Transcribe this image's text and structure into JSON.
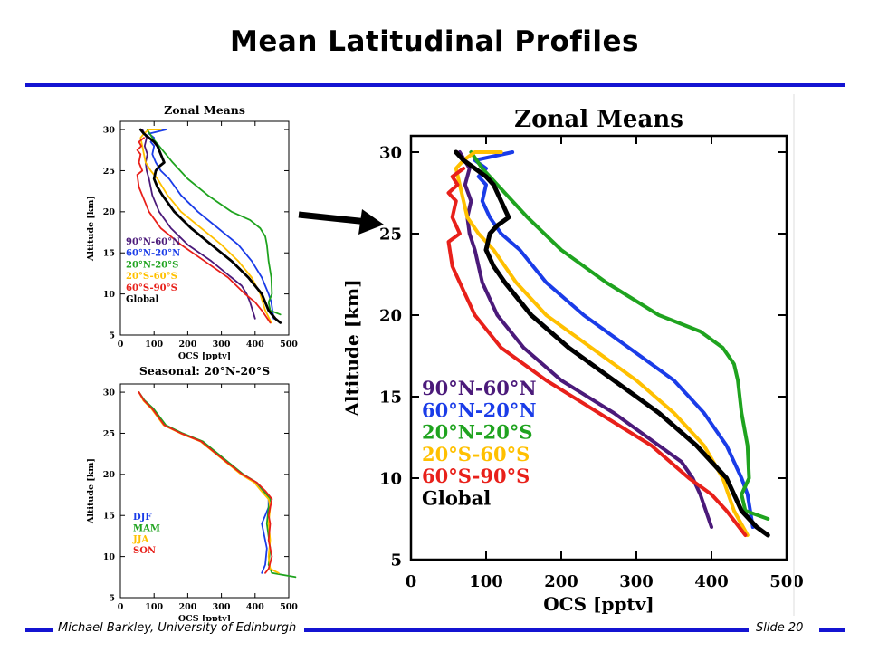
{
  "slide": {
    "title": "Mean Latitudinal Profiles",
    "footer_left": "Michael Barkley, University of Edinburgh",
    "footer_right": "Slide 20"
  },
  "colors": {
    "accent": "#1414d2",
    "purple": "#4b1a7a",
    "blue": "#1a3ce8",
    "green": "#1fa31f",
    "yellow": "#ffc000",
    "red": "#e8201a",
    "black": "#000000"
  },
  "arrow": {
    "icon": "right-arrow-icon"
  },
  "chart_data": [
    {
      "type": "line",
      "title": "Zonal Means",
      "xlabel": "OCS [pptv]",
      "ylabel": "Altitude [km]",
      "xlim": [
        0,
        500
      ],
      "ylim": [
        5,
        31
      ],
      "xticks": [
        0,
        100,
        200,
        300,
        400,
        500
      ],
      "yticks": [
        5,
        10,
        15,
        20,
        25,
        30
      ],
      "grid": false,
      "legend": "inside lower-left",
      "series": [
        {
          "name": "90°N-60°N",
          "color": "#4b1a7a",
          "x": [
            400,
            385,
            375,
            360,
            330,
            270,
            200,
            150,
            115,
            95,
            85,
            78,
            75,
            80,
            72,
            78,
            65
          ],
          "y": [
            7,
            9,
            10,
            11,
            12,
            14,
            16,
            18,
            20,
            22,
            24,
            25,
            26,
            27,
            28,
            29,
            30
          ]
        },
        {
          "name": "60°N-20°N",
          "color": "#1a3ce8",
          "x": [
            455,
            448,
            440,
            420,
            390,
            350,
            290,
            230,
            180,
            145,
            120,
            105,
            95,
            100,
            90,
            100,
            85,
            135
          ],
          "y": [
            7,
            9,
            10,
            12,
            14,
            16,
            18,
            20,
            22,
            24,
            25,
            26,
            27,
            28,
            28.5,
            29,
            29.5,
            30
          ]
        },
        {
          "name": "20°N-20°S",
          "color": "#1fa31f",
          "x": [
            475,
            445,
            440,
            450,
            448,
            440,
            435,
            430,
            415,
            385,
            330,
            260,
            200,
            155,
            115,
            95,
            80
          ],
          "y": [
            7.5,
            8,
            9,
            10,
            12,
            14,
            16,
            17,
            18,
            19,
            20,
            22,
            24,
            26,
            28,
            29,
            30
          ]
        },
        {
          "name": "20°S-60°S",
          "color": "#ffc000",
          "x": [
            448,
            430,
            415,
            390,
            350,
            300,
            240,
            180,
            140,
            110,
            90,
            75,
            70,
            65,
            60,
            70,
            85,
            120
          ],
          "y": [
            6.5,
            8,
            10,
            12,
            14,
            16,
            18,
            20,
            22,
            24,
            25,
            26,
            27,
            28,
            29,
            29.5,
            30,
            30
          ]
        },
        {
          "name": "60°S-90°S",
          "color": "#e8201a",
          "x": [
            445,
            420,
            400,
            370,
            320,
            250,
            180,
            120,
            85,
            65,
            55,
            50,
            65,
            55,
            60,
            50,
            62,
            55,
            70
          ],
          "y": [
            6.5,
            8,
            9,
            10,
            12,
            14,
            16,
            18,
            20,
            22,
            23,
            24.5,
            25,
            26,
            27,
            27.5,
            28,
            28.5,
            29
          ]
        },
        {
          "name": "Global",
          "color": "#000000",
          "x": [
            475,
            460,
            440,
            420,
            380,
            330,
            270,
            210,
            160,
            125,
            110,
            100,
            105,
            115,
            130,
            120,
            110,
            100,
            85,
            70,
            60
          ],
          "y": [
            6.5,
            7,
            8,
            10,
            12,
            14,
            16,
            18,
            20,
            22,
            23,
            24,
            25,
            25.5,
            26,
            27,
            28,
            28.5,
            29,
            29.5,
            30
          ]
        }
      ]
    },
    {
      "type": "line",
      "title": "Seasonal: 20°N-20°S",
      "xlabel": "OCS [pptv]",
      "ylabel": "Altitude [km]",
      "xlim": [
        0,
        500
      ],
      "ylim": [
        5,
        31
      ],
      "xticks": [
        0,
        100,
        200,
        300,
        400,
        500
      ],
      "yticks": [
        5,
        10,
        15,
        20,
        25,
        30
      ],
      "grid": false,
      "legend": "inside lower-left",
      "series": [
        {
          "name": "DJF",
          "color": "#1a3ce8",
          "x": [
            420,
            430,
            435,
            420,
            430,
            440,
            440,
            420,
            400,
            360,
            300,
            240,
            180,
            130,
            95,
            70,
            55
          ],
          "y": [
            8,
            9,
            11,
            14,
            15,
            16,
            17,
            18,
            19,
            20,
            22,
            24,
            25,
            26,
            28,
            29,
            30
          ]
        },
        {
          "name": "MAM",
          "color": "#1fa31f",
          "x": [
            520,
            450,
            440,
            445,
            435,
            440,
            445,
            425,
            405,
            365,
            305,
            245,
            185,
            135,
            98,
            72,
            55
          ],
          "y": [
            7.5,
            8,
            9,
            11,
            14,
            16,
            17,
            18,
            19,
            20,
            22,
            24,
            25,
            26,
            28,
            29,
            30
          ]
        },
        {
          "name": "JJA",
          "color": "#ffc000",
          "x": [
            470,
            445,
            440,
            445,
            440,
            445,
            440,
            418,
            398,
            358,
            298,
            238,
            178,
            128,
            92,
            68,
            55
          ],
          "y": [
            8,
            8.5,
            10,
            12,
            14,
            16,
            17,
            18,
            19,
            20,
            22,
            24,
            25,
            26,
            28,
            29,
            30
          ]
        },
        {
          "name": "SON",
          "color": "#e8201a",
          "x": [
            430,
            440,
            450,
            440,
            445,
            440,
            450,
            430,
            405,
            362,
            300,
            240,
            180,
            130,
            94,
            70,
            55
          ],
          "y": [
            8,
            8.5,
            10,
            12,
            14,
            15,
            17,
            18,
            19,
            20,
            22,
            24,
            25,
            26,
            28,
            29,
            30
          ]
        }
      ]
    },
    {
      "type": "line",
      "title": "Zonal Means",
      "xlabel": "OCS [pptv]",
      "ylabel": "Altitude [km]",
      "xlim": [
        0,
        500
      ],
      "ylim": [
        5,
        31
      ],
      "xticks": [
        0,
        100,
        200,
        300,
        400,
        500
      ],
      "yticks": [
        5,
        10,
        15,
        20,
        25,
        30
      ],
      "grid": false,
      "legend": "inside lower-left",
      "series_ref": 0
    }
  ]
}
